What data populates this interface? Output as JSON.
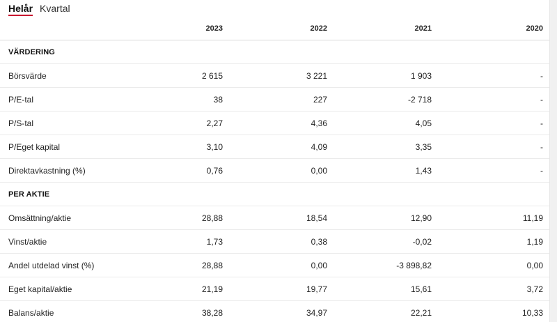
{
  "tabs": [
    {
      "label": "Helår",
      "active": true
    },
    {
      "label": "Kvartal",
      "active": false
    }
  ],
  "columns": [
    "",
    "2023",
    "2022",
    "2021",
    "2020"
  ],
  "sections": [
    {
      "title": "VÄRDERING",
      "rows": [
        {
          "label": "Börsvärde",
          "values": [
            "2 615",
            "3 221",
            "1 903",
            "-"
          ]
        },
        {
          "label": "P/E-tal",
          "values": [
            "38",
            "227",
            "-2 718",
            "-"
          ]
        },
        {
          "label": "P/S-tal",
          "values": [
            "2,27",
            "4,36",
            "4,05",
            "-"
          ]
        },
        {
          "label": "P/Eget kapital",
          "values": [
            "3,10",
            "4,09",
            "3,35",
            "-"
          ]
        },
        {
          "label": "Direktavkastning (%)",
          "values": [
            "0,76",
            "0,00",
            "1,43",
            "-"
          ]
        }
      ]
    },
    {
      "title": "PER AKTIE",
      "rows": [
        {
          "label": "Omsättning/aktie",
          "values": [
            "28,88",
            "18,54",
            "12,90",
            "11,19"
          ]
        },
        {
          "label": "Vinst/aktie",
          "values": [
            "1,73",
            "0,38",
            "-0,02",
            "1,19"
          ]
        },
        {
          "label": "Andel utdelad vinst (%)",
          "values": [
            "28,88",
            "0,00",
            "-3 898,82",
            "0,00"
          ]
        },
        {
          "label": "Eget kapital/aktie",
          "values": [
            "21,19",
            "19,77",
            "15,61",
            "3,72"
          ]
        },
        {
          "label": "Balans/aktie",
          "values": [
            "38,28",
            "34,97",
            "22,21",
            "10,33"
          ]
        }
      ]
    }
  ]
}
